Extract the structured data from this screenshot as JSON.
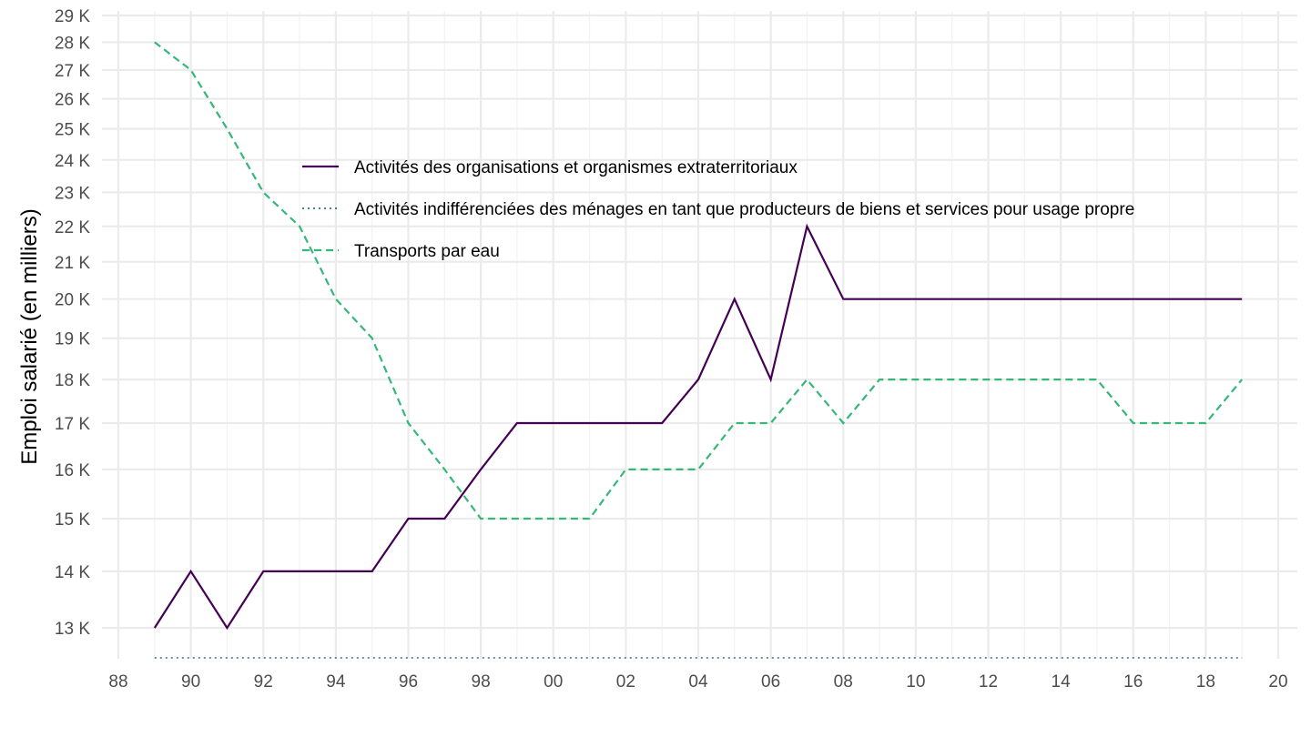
{
  "chart_data": {
    "type": "line",
    "title": "",
    "xlabel": "",
    "ylabel": "Emploi salarié (en milliers)",
    "x_ticks": [
      "88",
      "90",
      "92",
      "94",
      "96",
      "98",
      "00",
      "02",
      "04",
      "06",
      "08",
      "10",
      "12",
      "14",
      "16",
      "18",
      "20"
    ],
    "y_ticks": [
      "13 K",
      "14 K",
      "15 K",
      "16 K",
      "17 K",
      "18 K",
      "19 K",
      "20 K",
      "21 K",
      "22 K",
      "23 K",
      "24 K",
      "25 K",
      "26 K",
      "27 K",
      "28 K",
      "29 K"
    ],
    "y_scale": "log",
    "ylim": [
      12500,
      29000
    ],
    "xlim": [
      1988,
      2020
    ],
    "grid": true,
    "legend_position": "top-left inside plot",
    "series": [
      {
        "name": "Activités des organisations et organismes extraterritoriaux",
        "color": "#440154",
        "dash": "solid",
        "x": [
          1989,
          1990,
          1991,
          1992,
          1993,
          1994,
          1995,
          1996,
          1997,
          1998,
          1999,
          2000,
          2001,
          2002,
          2003,
          2004,
          2005,
          2006,
          2007,
          2008,
          2009,
          2010,
          2011,
          2012,
          2013,
          2014,
          2015,
          2016,
          2017,
          2018,
          2019
        ],
        "values": [
          13000,
          14000,
          13000,
          14000,
          14000,
          14000,
          14000,
          15000,
          15000,
          16000,
          17000,
          17000,
          17000,
          17000,
          17000,
          18000,
          20000,
          18000,
          22000,
          20000,
          20000,
          20000,
          20000,
          20000,
          20000,
          20000,
          20000,
          20000,
          20000,
          20000,
          20000
        ]
      },
      {
        "name": "Activités indifférenciées des ménages en tant que producteurs de biens et services pour usage propre",
        "color": "#31688e",
        "dash": "dotted",
        "x": [
          1989,
          1990,
          1991,
          1992,
          1993,
          1994,
          1995,
          1996,
          1997,
          1998,
          1999,
          2000,
          2001,
          2002,
          2003,
          2004,
          2005,
          2006,
          2007,
          2008,
          2009,
          2010,
          2011,
          2012,
          2013,
          2014,
          2015,
          2016,
          2017,
          2018,
          2019
        ],
        "values": [
          12500,
          12500,
          12500,
          12500,
          12500,
          12500,
          12500,
          12500,
          12500,
          12500,
          12500,
          12500,
          12500,
          12500,
          12500,
          12500,
          12500,
          12500,
          12500,
          12500,
          12500,
          12500,
          12500,
          12500,
          12500,
          12500,
          12500,
          12500,
          12500,
          12500,
          12500
        ]
      },
      {
        "name": "Transports par eau",
        "color": "#35b779",
        "dash": "dashed",
        "x": [
          1989,
          1990,
          1991,
          1992,
          1993,
          1994,
          1995,
          1996,
          1997,
          1998,
          1999,
          2000,
          2001,
          2002,
          2003,
          2004,
          2005,
          2006,
          2007,
          2008,
          2009,
          2010,
          2011,
          2012,
          2013,
          2014,
          2015,
          2016,
          2017,
          2018,
          2019
        ],
        "values": [
          28000,
          27000,
          25000,
          23000,
          22000,
          20000,
          19000,
          17000,
          16000,
          15000,
          15000,
          15000,
          15000,
          16000,
          16000,
          16000,
          17000,
          17000,
          18000,
          17000,
          18000,
          18000,
          18000,
          18000,
          18000,
          18000,
          18000,
          17000,
          17000,
          17000,
          18000
        ]
      }
    ]
  }
}
